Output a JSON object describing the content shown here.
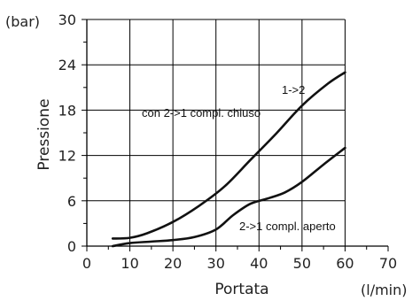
{
  "chart_data": {
    "type": "line",
    "xlabel": "Portata",
    "ylabel": "Pressione",
    "x_unit": "(l/min)",
    "y_unit": "(bar)",
    "xlim": [
      0,
      70
    ],
    "ylim": [
      0,
      30
    ],
    "x_ticks": [
      0,
      10,
      20,
      30,
      40,
      50,
      60,
      70
    ],
    "y_ticks": [
      0,
      6,
      12,
      18,
      24,
      30
    ],
    "grid": true,
    "series": [
      {
        "name": "1->2",
        "x": [
          6,
          10,
          14,
          20,
          26,
          32,
          38,
          44,
          50,
          56,
          60
        ],
        "y": [
          1,
          1.1,
          1.7,
          3.2,
          5.3,
          7.9,
          11.4,
          14.9,
          18.6,
          21.5,
          23
        ]
      },
      {
        "name": "2->1 compl. aperto",
        "x": [
          6,
          10,
          15,
          20,
          25,
          30,
          34,
          38,
          42,
          46,
          50,
          55,
          60
        ],
        "y": [
          0,
          0.4,
          0.6,
          0.8,
          1.2,
          2.2,
          4.1,
          5.6,
          6.3,
          7.1,
          8.5,
          10.8,
          13
        ]
      }
    ],
    "annotations": [
      "1->2",
      "con 2->1 compl. chiuso",
      "2->1 compl. aperto"
    ]
  }
}
